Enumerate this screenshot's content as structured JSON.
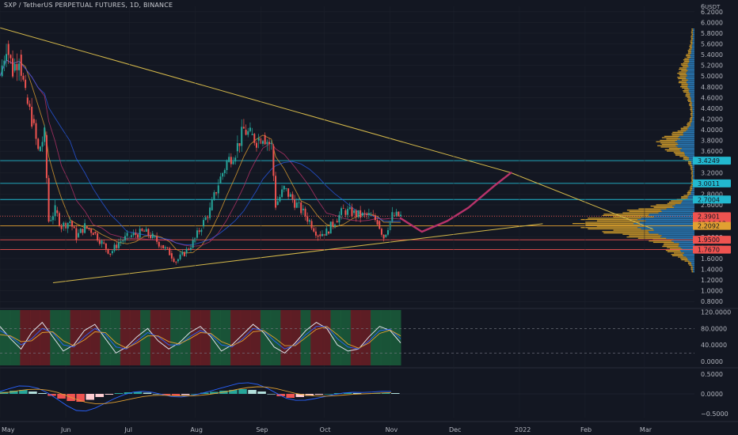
{
  "header": {
    "title": "SXP / TetherUS PERPETUAL FUTURES, 1D, BINANCE"
  },
  "currency": "USDT",
  "colors": {
    "background": "#131722",
    "grid": "#1e222d",
    "up": "#26a69a",
    "down": "#ef5350",
    "triangle": "#d4b84a",
    "cyan_level": "#22b8cf",
    "red_level": "#ef5350",
    "orange_level": "#e1a031",
    "projection": "#b8336a",
    "volume_profile_gold": "#c8962a",
    "volume_profile_blue": "#2a7bb8",
    "zone_green": "#1b5e3b",
    "zone_red": "#6b1f24"
  },
  "chart_data": [
    {
      "type": "candlestick",
      "pane": "price",
      "price_axis_ticks": [
        "6.2000",
        "6.0000",
        "5.8000",
        "5.6000",
        "5.4000",
        "5.2000",
        "5.0000",
        "4.8000",
        "4.6000",
        "4.4000",
        "4.2000",
        "4.0000",
        "3.8000",
        "3.6000",
        "3.4000",
        "3.2000",
        "3.0000",
        "2.8000",
        "2.6000",
        "2.4000",
        "2.2000",
        "2.0000",
        "1.8000",
        "1.6000",
        "1.4000",
        "1.2000",
        "1.0000",
        "0.8000"
      ],
      "top_axis_label": "6",
      "time_axis_labels": [
        "May",
        "Jun",
        "Jul",
        "Aug",
        "Sep",
        "Oct",
        "Nov",
        "Dec",
        "2022",
        "Feb",
        "Mar"
      ],
      "ylim": [
        0.7,
        6.3
      ],
      "price_labels": [
        {
          "text": "3.4249",
          "value": 3.4249,
          "color": "#22b8cf"
        },
        {
          "text": "3.0011",
          "value": 3.0011,
          "color": "#22b8cf"
        },
        {
          "text": "2.7004",
          "value": 2.7004,
          "color": "#22b8cf"
        },
        {
          "text": "2.3901",
          "value": 2.3901,
          "color": "#ef5350"
        },
        {
          "text": "03:16:13",
          "value": 2.31,
          "color": "#ef5350"
        },
        {
          "text": "2.2092",
          "value": 2.2092,
          "color": "#e1a031"
        },
        {
          "text": "1.9500",
          "value": 1.95,
          "color": "#ef5350"
        },
        {
          "text": "1.7670",
          "value": 1.767,
          "color": "#ef5350"
        }
      ],
      "close_series": [
        [
          "2021-05-01",
          5.0
        ],
        [
          "2021-05-04",
          5.6
        ],
        [
          "2021-05-07",
          5.1
        ],
        [
          "2021-05-10",
          5.4
        ],
        [
          "2021-05-13",
          4.6
        ],
        [
          "2021-05-16",
          4.2
        ],
        [
          "2021-05-19",
          3.6
        ],
        [
          "2021-05-22",
          3.9
        ],
        [
          "2021-05-24",
          2.3
        ],
        [
          "2021-05-27",
          2.5
        ],
        [
          "2021-05-30",
          2.2
        ],
        [
          "2021-06-03",
          2.3
        ],
        [
          "2021-06-06",
          2.0
        ],
        [
          "2021-06-10",
          2.2
        ],
        [
          "2021-06-14",
          2.1
        ],
        [
          "2021-06-18",
          1.9
        ],
        [
          "2021-06-22",
          1.7
        ],
        [
          "2021-06-26",
          1.9
        ],
        [
          "2021-06-30",
          2.0
        ],
        [
          "2021-07-04",
          2.05
        ],
        [
          "2021-07-08",
          2.1
        ],
        [
          "2021-07-12",
          2.0
        ],
        [
          "2021-07-16",
          1.85
        ],
        [
          "2021-07-20",
          1.7
        ],
        [
          "2021-07-23",
          1.55
        ],
        [
          "2021-07-27",
          1.7
        ],
        [
          "2021-07-31",
          1.9
        ],
        [
          "2021-08-04",
          2.2
        ],
        [
          "2021-08-08",
          2.5
        ],
        [
          "2021-08-12",
          3.0
        ],
        [
          "2021-08-16",
          3.4
        ],
        [
          "2021-08-20",
          3.6
        ],
        [
          "2021-08-24",
          4.0
        ],
        [
          "2021-08-27",
          3.9
        ],
        [
          "2021-08-30",
          3.8
        ],
        [
          "2021-09-02",
          3.9
        ],
        [
          "2021-09-06",
          3.7
        ],
        [
          "2021-09-08",
          2.6
        ],
        [
          "2021-09-12",
          2.9
        ],
        [
          "2021-09-16",
          2.7
        ],
        [
          "2021-09-20",
          2.5
        ],
        [
          "2021-09-24",
          2.3
        ],
        [
          "2021-09-28",
          2.05
        ],
        [
          "2021-10-02",
          2.1
        ],
        [
          "2021-10-06",
          2.3
        ],
        [
          "2021-10-10",
          2.5
        ],
        [
          "2021-10-14",
          2.45
        ],
        [
          "2021-10-18",
          2.4
        ],
        [
          "2021-10-22",
          2.4
        ],
        [
          "2021-10-26",
          2.3
        ],
        [
          "2021-10-29",
          2.0
        ],
        [
          "2021-11-02",
          2.4
        ],
        [
          "2021-11-06",
          2.39
        ]
      ],
      "levels": [
        {
          "value": 3.4249,
          "color": "cyan"
        },
        {
          "value": 3.0011,
          "color": "cyan"
        },
        {
          "value": 2.7004,
          "color": "cyan"
        },
        {
          "value": 2.3901,
          "color": "red-dotted"
        },
        {
          "value": 2.2092,
          "color": "orange"
        },
        {
          "value": 1.95,
          "color": "red"
        },
        {
          "value": 1.767,
          "color": "red"
        }
      ],
      "triangle": {
        "upper": [
          [
            "2021-05-01",
            5.9
          ],
          [
            "2021-12-28",
            3.2
          ]
        ],
        "lower": [
          [
            "2021-05-26",
            1.15
          ],
          [
            "2022-01-12",
            2.25
          ]
        ],
        "upper_extension": [
          [
            "2021-12-28",
            3.2
          ],
          [
            "2022-03-05",
            2.15
          ]
        ]
      },
      "projection": [
        [
          "2021-11-06",
          2.35
        ],
        [
          "2021-11-16",
          2.1
        ],
        [
          "2021-11-28",
          2.3
        ],
        [
          "2021-12-08",
          2.55
        ],
        [
          "2021-12-20",
          2.95
        ],
        [
          "2021-12-28",
          3.2
        ]
      ]
    },
    {
      "type": "line",
      "pane": "oscillator",
      "axis_ticks": [
        "120.0000",
        "80.0000",
        "40.0000",
        "0.0000"
      ],
      "ylim": [
        -10,
        125
      ],
      "reference_lines": [
        80,
        20
      ],
      "series": [
        {
          "color": "#e0e3eb",
          "values": [
            85,
            55,
            30,
            70,
            95,
            60,
            25,
            40,
            75,
            90,
            55,
            20,
            35,
            60,
            80,
            50,
            30,
            45,
            70,
            85,
            60,
            25,
            40,
            65,
            90,
            70,
            35,
            20,
            45,
            75,
            95,
            80,
            40,
            25,
            30,
            60,
            85,
            75,
            45
          ]
        },
        {
          "color": "#2962ff",
          "values": [
            75,
            60,
            40,
            55,
            80,
            70,
            40,
            35,
            60,
            80,
            65,
            35,
            30,
            50,
            70,
            60,
            40,
            40,
            60,
            75,
            65,
            40,
            35,
            55,
            80,
            75,
            50,
            30,
            40,
            65,
            85,
            85,
            55,
            35,
            30,
            50,
            75,
            78,
            55
          ]
        },
        {
          "color": "#e1a031",
          "values": [
            65,
            62,
            48,
            50,
            70,
            72,
            50,
            38,
            52,
            72,
            70,
            45,
            32,
            45,
            62,
            62,
            48,
            42,
            55,
            70,
            68,
            48,
            38,
            50,
            72,
            75,
            58,
            38,
            38,
            58,
            78,
            85,
            65,
            42,
            32,
            45,
            68,
            76,
            62
          ]
        }
      ]
    },
    {
      "type": "bar",
      "pane": "macd",
      "axis_ticks": [
        "0.5000",
        "0.0000",
        "−0.5000"
      ],
      "ylim": [
        -0.6,
        0.6
      ],
      "histogram": [
        0.05,
        0.08,
        0.1,
        0.06,
        0.02,
        -0.05,
        -0.12,
        -0.18,
        -0.2,
        -0.15,
        -0.08,
        -0.02,
        0.02,
        0.04,
        0.05,
        0.03,
        0.0,
        -0.03,
        -0.05,
        -0.03,
        0.0,
        0.03,
        0.05,
        0.08,
        0.1,
        0.12,
        0.1,
        0.06,
        0.0,
        -0.06,
        -0.1,
        -0.08,
        -0.05,
        -0.02,
        0.0,
        0.02,
        0.03,
        0.02,
        0.01,
        0.02,
        0.03,
        0.02
      ]
    }
  ]
}
